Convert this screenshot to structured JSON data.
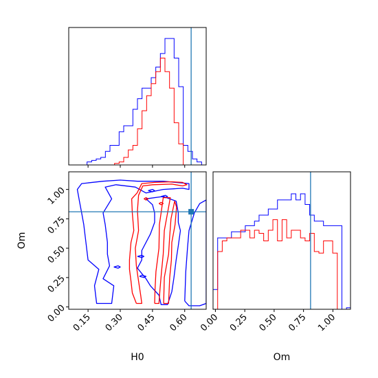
{
  "chart_data": {
    "type": "corner",
    "parameters": [
      "H0",
      "Om"
    ],
    "truths": {
      "H0": 0.63,
      "Om": 0.81
    },
    "truth_color": "#1f77b4",
    "series_colors": [
      "#0000ff",
      "#ff0000"
    ],
    "axes": {
      "H0": {
        "label": "H0",
        "range": [
          0.06,
          0.7
        ],
        "ticks": [
          0.15,
          0.3,
          0.45,
          0.6
        ],
        "tick_labels": [
          "0.15",
          "0.30",
          "0.45",
          "0.60"
        ]
      },
      "Om": {
        "label": "Om",
        "range": [
          -0.02,
          1.15
        ],
        "ticks": [
          0.0,
          0.25,
          0.5,
          0.75,
          1.0
        ],
        "tick_labels": [
          "0.00",
          "0.25",
          "0.50",
          "0.75",
          "1.00"
        ]
      }
    },
    "hist_H0": {
      "bin_edges": [
        0.06,
        0.0813,
        0.1027,
        0.124,
        0.1453,
        0.1667,
        0.188,
        0.2093,
        0.2307,
        0.252,
        0.2733,
        0.2947,
        0.316,
        0.3373,
        0.3587,
        0.38,
        0.4013,
        0.4227,
        0.444,
        0.4653,
        0.4867,
        0.508,
        0.5293,
        0.5507,
        0.572,
        0.5933,
        0.6147,
        0.636,
        0.6573,
        0.6787,
        0.7
      ],
      "series": [
        {
          "color": "#0000ff",
          "counts": [
            0,
            0,
            0,
            0,
            0.02,
            0.03,
            0.04,
            0.05,
            0.09,
            0.13,
            0.13,
            0.22,
            0.26,
            0.26,
            0.37,
            0.44,
            0.51,
            0.51,
            0.58,
            0.65,
            0.74,
            0.84,
            0.84,
            0.71,
            0.52,
            0.13,
            0.09,
            0.04,
            0.02,
            0
          ]
        },
        {
          "color": "#ff0000",
          "counts": [
            0,
            0,
            0,
            0,
            0,
            0,
            0,
            0,
            0,
            0,
            0.01,
            0.02,
            0.05,
            0.1,
            0.13,
            0.24,
            0.36,
            0.46,
            0.54,
            0.62,
            0.71,
            0.62,
            0.51,
            0.28,
            0.14,
            0,
            0,
            0,
            0,
            0
          ]
        }
      ]
    },
    "hist_Om": {
      "bin_edges": [
        -0.02,
        0.0192,
        0.0583,
        0.0975,
        0.1367,
        0.1758,
        0.215,
        0.2542,
        0.2933,
        0.3325,
        0.3717,
        0.4108,
        0.45,
        0.4892,
        0.5283,
        0.5675,
        0.6067,
        0.6458,
        0.685,
        0.7242,
        0.7633,
        0.8025,
        0.8417,
        0.8808,
        0.92,
        0.9592,
        0.9983,
        1.0375,
        1.0767,
        1.1158,
        1.155
      ],
      "series": [
        {
          "color": "#0000ff",
          "counts": [
            0.13,
            0.47,
            0.47,
            0.47,
            0.51,
            0.51,
            0.51,
            0.55,
            0.55,
            0.58,
            0.62,
            0.62,
            0.66,
            0.66,
            0.72,
            0.72,
            0.72,
            0.76,
            0.72,
            0.76,
            0.69,
            0.62,
            0.58,
            0.58,
            0.55,
            0.55,
            0.55,
            0.55,
            0,
            0.01
          ]
        },
        {
          "color": "#ff0000",
          "counts": [
            0,
            0.38,
            0.45,
            0.47,
            0.47,
            0.47,
            0.52,
            0.52,
            0.47,
            0.52,
            0.5,
            0.45,
            0.52,
            0.59,
            0.45,
            0.59,
            0.47,
            0.52,
            0.52,
            0.47,
            0.45,
            0.5,
            0.38,
            0.37,
            0.45,
            0.45,
            0.37,
            0,
            0,
            0
          ]
        }
      ]
    },
    "contours": [
      {
        "color": "#0000ff",
        "levels": [
          [
            [
              0.38,
              1.07
            ],
            [
              0.3,
              1.08
            ],
            [
              0.22,
              1.07
            ],
            [
              0.12,
              1.05
            ],
            [
              0.1,
              1.0
            ],
            [
              0.11,
              0.9
            ],
            [
              0.12,
              0.8
            ],
            [
              0.13,
              0.7
            ],
            [
              0.14,
              0.55
            ],
            [
              0.15,
              0.4
            ],
            [
              0.2,
              0.32
            ],
            [
              0.18,
              0.18
            ],
            [
              0.19,
              0.03
            ],
            [
              0.26,
              0.03
            ],
            [
              0.27,
              0.18
            ],
            [
              0.22,
              0.24
            ],
            [
              0.25,
              0.35
            ],
            [
              0.24,
              0.45
            ],
            [
              0.24,
              0.55
            ],
            [
              0.23,
              0.7
            ],
            [
              0.22,
              0.8
            ],
            [
              0.26,
              0.92
            ],
            [
              0.23,
              1.02
            ],
            [
              0.28,
              1.04
            ],
            [
              0.37,
              1.02
            ],
            [
              0.42,
              0.97
            ],
            [
              0.5,
              1.0
            ],
            [
              0.59,
              1.01
            ],
            [
              0.62,
              1.0
            ],
            [
              0.62,
              1.05
            ],
            [
              0.5,
              1.07
            ],
            [
              0.38,
              1.07
            ]
          ],
          [
            [
              0.42,
              0.92
            ],
            [
              0.45,
              0.87
            ],
            [
              0.46,
              0.8
            ],
            [
              0.46,
              0.72
            ],
            [
              0.44,
              0.62
            ],
            [
              0.4,
              0.48
            ],
            [
              0.4,
              0.4
            ],
            [
              0.38,
              0.33
            ],
            [
              0.42,
              0.24
            ],
            [
              0.44,
              0.18
            ],
            [
              0.48,
              0.1
            ],
            [
              0.49,
              0.02
            ],
            [
              0.52,
              0.02
            ],
            [
              0.54,
              0.13
            ],
            [
              0.55,
              0.25
            ],
            [
              0.56,
              0.4
            ],
            [
              0.57,
              0.52
            ],
            [
              0.58,
              0.65
            ],
            [
              0.57,
              0.72
            ],
            [
              0.57,
              0.8
            ],
            [
              0.56,
              0.9
            ],
            [
              0.5,
              0.94
            ],
            [
              0.42,
              0.92
            ]
          ],
          [
            [
              0.6,
              0.05
            ],
            [
              0.605,
              0.3
            ],
            [
              0.613,
              0.5
            ],
            [
              0.62,
              0.65
            ],
            [
              0.645,
              0.8
            ],
            [
              0.67,
              0.88
            ],
            [
              0.7,
              0.91
            ],
            [
              0.7,
              0.03
            ],
            [
              0.67,
              0.01
            ],
            [
              0.62,
              0.01
            ],
            [
              0.6,
              0.05
            ]
          ],
          [
            [
              0.27,
              0.34
            ],
            [
              0.29,
              0.33
            ],
            [
              0.3,
              0.34
            ],
            [
              0.29,
              0.35
            ],
            [
              0.27,
              0.34
            ]
          ],
          [
            [
              0.38,
              0.43
            ],
            [
              0.4,
              0.42
            ],
            [
              0.41,
              0.43
            ],
            [
              0.4,
              0.44
            ],
            [
              0.38,
              0.43
            ]
          ],
          [
            [
              0.39,
              0.26
            ],
            [
              0.41,
              0.25
            ],
            [
              0.42,
              0.26
            ],
            [
              0.4,
              0.27
            ],
            [
              0.39,
              0.26
            ]
          ],
          [
            [
              0.43,
              0.99
            ],
            [
              0.45,
              0.98
            ],
            [
              0.46,
              0.99
            ],
            [
              0.45,
              1.0
            ],
            [
              0.43,
              0.99
            ]
          ],
          [
            [
              0.49,
              0.94
            ],
            [
              0.51,
              0.93
            ],
            [
              0.52,
              0.94
            ],
            [
              0.51,
              0.95
            ],
            [
              0.49,
              0.94
            ]
          ]
        ]
      },
      {
        "color": "#ff0000",
        "levels": [
          [
            [
              0.375,
              0.03
            ],
            [
              0.356,
              0.12
            ],
            [
              0.35,
              0.22
            ],
            [
              0.343,
              0.32
            ],
            [
              0.343,
              0.4
            ],
            [
              0.35,
              0.55
            ],
            [
              0.363,
              0.65
            ],
            [
              0.356,
              0.8
            ],
            [
              0.353,
              0.92
            ],
            [
              0.378,
              0.97
            ],
            [
              0.4,
              1.05
            ],
            [
              0.46,
              1.06
            ],
            [
              0.54,
              1.065
            ],
            [
              0.59,
              1.06
            ],
            [
              0.61,
              1.04
            ],
            [
              0.59,
              1.03
            ],
            [
              0.54,
              1.045
            ],
            [
              0.45,
              1.04
            ],
            [
              0.405,
              1.03
            ],
            [
              0.385,
              0.95
            ],
            [
              0.38,
              0.82
            ],
            [
              0.385,
              0.65
            ],
            [
              0.37,
              0.5
            ],
            [
              0.375,
              0.35
            ],
            [
              0.385,
              0.22
            ],
            [
              0.395,
              0.1
            ],
            [
              0.4,
              0.03
            ],
            [
              0.375,
              0.03
            ]
          ],
          [
            [
              0.46,
              0.03
            ],
            [
              0.462,
              0.15
            ],
            [
              0.466,
              0.3
            ],
            [
              0.48,
              0.5
            ],
            [
              0.482,
              0.7
            ],
            [
              0.49,
              0.8
            ],
            [
              0.5,
              0.93
            ],
            [
              0.533,
              0.93
            ],
            [
              0.52,
              0.8
            ],
            [
              0.505,
              0.65
            ],
            [
              0.5,
              0.45
            ],
            [
              0.492,
              0.3
            ],
            [
              0.485,
              0.15
            ],
            [
              0.48,
              0.03
            ],
            [
              0.46,
              0.03
            ]
          ],
          [
            [
              0.502,
              0.03
            ],
            [
              0.505,
              0.25
            ],
            [
              0.525,
              0.45
            ],
            [
              0.53,
              0.6
            ],
            [
              0.536,
              0.75
            ],
            [
              0.553,
              0.9
            ],
            [
              0.562,
              0.85
            ],
            [
              0.555,
              0.7
            ],
            [
              0.54,
              0.55
            ],
            [
              0.538,
              0.4
            ],
            [
              0.53,
              0.25
            ],
            [
              0.525,
              0.03
            ],
            [
              0.502,
              0.03
            ]
          ],
          [
            [
              0.41,
              0.92
            ],
            [
              0.42,
              0.91
            ],
            [
              0.43,
              0.92
            ],
            [
              0.42,
              0.93
            ],
            [
              0.41,
              0.92
            ]
          ],
          [
            [
              0.48,
              0.88
            ],
            [
              0.49,
              0.87
            ],
            [
              0.5,
              0.88
            ],
            [
              0.49,
              0.89
            ],
            [
              0.48,
              0.88
            ]
          ]
        ]
      }
    ]
  }
}
